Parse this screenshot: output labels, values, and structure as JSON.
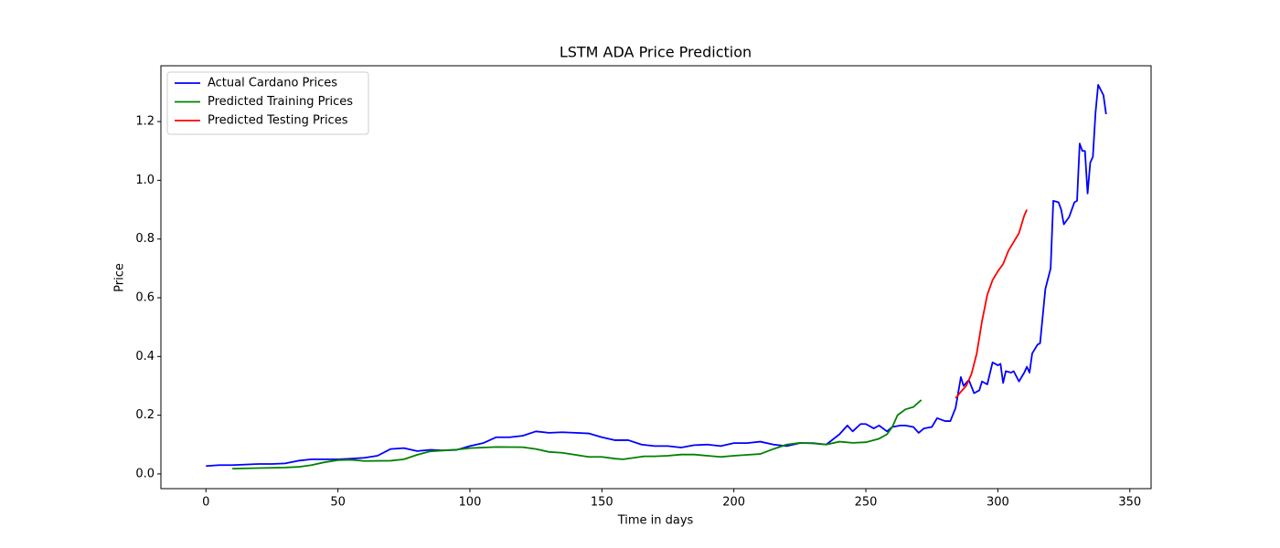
{
  "chart_data": {
    "type": "line",
    "title": "LSTM ADA Price Prediction",
    "x_label": "Time in days",
    "y_label": "Price",
    "xlim": [
      -17.05,
      358.05
    ],
    "ylim": [
      -0.05,
      1.39
    ],
    "xticks": [
      0,
      50,
      100,
      150,
      200,
      250,
      300,
      350
    ],
    "yticks": [
      {
        "value": 0,
        "label": "0.0"
      },
      0.2,
      0.4,
      0.6,
      0.8,
      {
        "value": 1,
        "label": "1.0"
      },
      1.2
    ],
    "legend": "upper left",
    "series": [
      {
        "name": "Actual Cardano Prices",
        "color": "#0000ff",
        "x": [
          0,
          5,
          10,
          15,
          20,
          25,
          30,
          35,
          40,
          45,
          50,
          55,
          60,
          65,
          70,
          75,
          80,
          85,
          90,
          95,
          100,
          105,
          110,
          115,
          120,
          125,
          130,
          135,
          140,
          145,
          150,
          155,
          160,
          165,
          170,
          175,
          180,
          185,
          190,
          195,
          200,
          205,
          210,
          215,
          220,
          225,
          230,
          235,
          240,
          243,
          245,
          248,
          250,
          253,
          255,
          258,
          260,
          263,
          265,
          268,
          270,
          272,
          275,
          277,
          280,
          282,
          284,
          286,
          287,
          289,
          291,
          293,
          294,
          296,
          298,
          300,
          301,
          302,
          303,
          305,
          306,
          308,
          310,
          311,
          312,
          313,
          315,
          316,
          318,
          320,
          321,
          323,
          324,
          325,
          327,
          329,
          330,
          331,
          332,
          333,
          334,
          335,
          336,
          337,
          338,
          340,
          341
        ],
        "values": [
          0.027,
          0.03,
          0.03,
          0.032,
          0.034,
          0.034,
          0.036,
          0.045,
          0.05,
          0.05,
          0.05,
          0.052,
          0.055,
          0.062,
          0.085,
          0.088,
          0.078,
          0.082,
          0.08,
          0.082,
          0.095,
          0.105,
          0.125,
          0.125,
          0.13,
          0.145,
          0.14,
          0.142,
          0.14,
          0.138,
          0.125,
          0.115,
          0.115,
          0.1,
          0.095,
          0.095,
          0.09,
          0.098,
          0.1,
          0.095,
          0.105,
          0.105,
          0.11,
          0.1,
          0.095,
          0.105,
          0.105,
          0.1,
          0.135,
          0.165,
          0.145,
          0.17,
          0.17,
          0.155,
          0.165,
          0.145,
          0.16,
          0.165,
          0.165,
          0.16,
          0.14,
          0.155,
          0.16,
          0.19,
          0.18,
          0.18,
          0.225,
          0.33,
          0.3,
          0.32,
          0.275,
          0.285,
          0.315,
          0.305,
          0.38,
          0.37,
          0.375,
          0.31,
          0.35,
          0.345,
          0.35,
          0.315,
          0.345,
          0.365,
          0.345,
          0.41,
          0.44,
          0.445,
          0.63,
          0.7,
          0.93,
          0.925,
          0.9,
          0.85,
          0.875,
          0.925,
          0.93,
          1.125,
          1.1,
          1.1,
          0.955,
          1.06,
          1.08,
          1.23,
          1.325,
          1.29,
          1.225
        ]
      },
      {
        "name": "Predicted Training Prices",
        "color": "#008000",
        "x": [
          10,
          20,
          30,
          35,
          40,
          45,
          50,
          55,
          60,
          70,
          75,
          80,
          85,
          90,
          95,
          100,
          110,
          120,
          125,
          130,
          135,
          140,
          145,
          150,
          155,
          158,
          162,
          166,
          170,
          175,
          180,
          185,
          190,
          195,
          200,
          205,
          210,
          215,
          220,
          225,
          230,
          235,
          240,
          245,
          250,
          255,
          258,
          260,
          262,
          265,
          268,
          271
        ],
        "values": [
          0.018,
          0.02,
          0.022,
          0.024,
          0.03,
          0.04,
          0.047,
          0.048,
          0.044,
          0.045,
          0.05,
          0.065,
          0.077,
          0.08,
          0.083,
          0.088,
          0.092,
          0.091,
          0.085,
          0.075,
          0.072,
          0.065,
          0.058,
          0.058,
          0.052,
          0.05,
          0.055,
          0.06,
          0.06,
          0.062,
          0.066,
          0.066,
          0.062,
          0.058,
          0.062,
          0.065,
          0.068,
          0.085,
          0.1,
          0.106,
          0.104,
          0.1,
          0.11,
          0.106,
          0.108,
          0.12,
          0.135,
          0.16,
          0.2,
          0.22,
          0.228,
          0.252
        ]
      },
      {
        "name": "Predicted Testing Prices",
        "color": "#ff0000",
        "x": [
          284,
          286,
          288,
          290,
          292,
          294,
          296,
          298,
          300,
          302,
          304,
          306,
          308,
          310,
          311
        ],
        "values": [
          0.258,
          0.28,
          0.3,
          0.34,
          0.41,
          0.52,
          0.61,
          0.66,
          0.69,
          0.715,
          0.76,
          0.79,
          0.82,
          0.88,
          0.9
        ]
      }
    ]
  }
}
